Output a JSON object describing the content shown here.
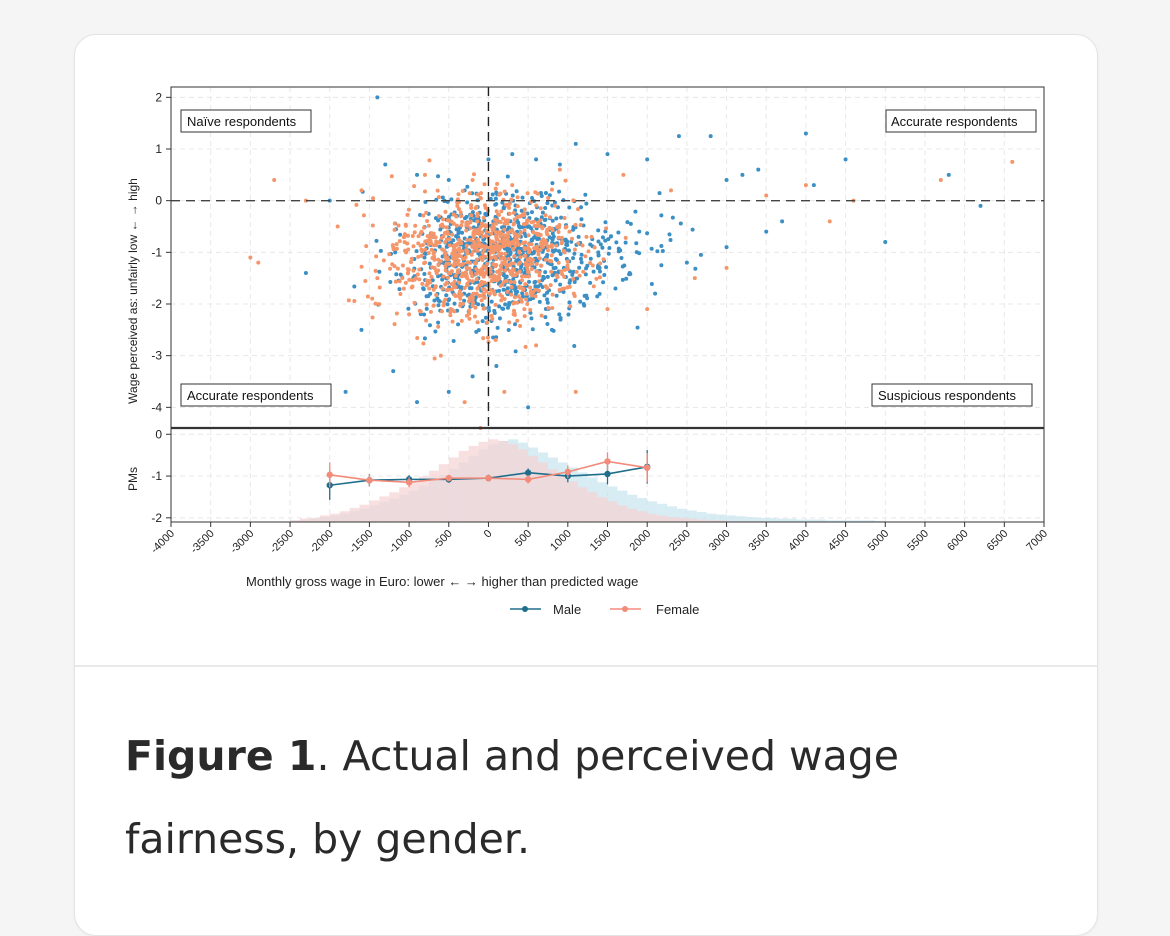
{
  "caption": {
    "label": "Figure 1",
    "text": ". Actual and perceived wage fairness, by gender."
  },
  "colors": {
    "male": "#3b8fc4",
    "female": "#f4956a",
    "male_line": "#1f6e8c",
    "female_line": "#f28b7a",
    "hist_male": "#c7e4ef",
    "hist_female": "#f6d3d3"
  },
  "chart_data": [
    {
      "type": "scatter",
      "ylabel": "Wage perceived as: unfairly low  ←   →  high",
      "xlim": [
        -4000,
        7000
      ],
      "ylim": [
        -4.4,
        2.2
      ],
      "y_ticks": [
        "2",
        "1",
        "0",
        "-1",
        "-2",
        "-3",
        "-4"
      ],
      "reference_lines": {
        "x": 0,
        "y": 0
      },
      "quadrant_labels": {
        "top_left": "Naïve respondents",
        "top_right": "Accurate respondents",
        "bottom_left": "Accurate respondents",
        "bottom_right": "Suspicious respondents"
      },
      "series": [
        {
          "name": "Male",
          "points": [
            [
              -1400,
              2
            ],
            [
              -2000,
              0
            ],
            [
              -1300,
              0.7
            ],
            [
              -900,
              0.5
            ],
            [
              -500,
              0.4
            ],
            [
              -300,
              0.2
            ],
            [
              0,
              0.8
            ],
            [
              300,
              0.9
            ],
            [
              600,
              0.8
            ],
            [
              900,
              0.7
            ],
            [
              1100,
              1.1
            ],
            [
              1500,
              0.9
            ],
            [
              2000,
              0.8
            ],
            [
              2400,
              1.25
            ],
            [
              2800,
              1.25
            ],
            [
              3000,
              0.4
            ],
            [
              3200,
              0.5
            ],
            [
              3400,
              0.6
            ],
            [
              3700,
              -0.4
            ],
            [
              4000,
              1.3
            ],
            [
              4100,
              0.3
            ],
            [
              4500,
              0.8
            ],
            [
              5000,
              -0.8
            ],
            [
              5800,
              0.5
            ],
            [
              6200,
              -0.1
            ],
            [
              -2300,
              -1.4
            ],
            [
              -1600,
              -2.5
            ],
            [
              -1200,
              -3.3
            ],
            [
              -900,
              -3.9
            ],
            [
              -500,
              -3.7
            ],
            [
              -200,
              -3.4
            ],
            [
              100,
              -3.2
            ],
            [
              500,
              -4
            ],
            [
              800,
              -2.5
            ],
            [
              1200,
              -2
            ],
            [
              1600,
              -1.7
            ],
            [
              2100,
              -1.8
            ],
            [
              2500,
              -1.2
            ],
            [
              3000,
              -0.9
            ],
            [
              3500,
              -0.6
            ],
            [
              -1800,
              -3.7
            ],
            [
              -700,
              -0.7
            ],
            [
              200,
              -0.5
            ],
            [
              700,
              -1.5
            ],
            [
              1400,
              -1.3
            ],
            [
              1900,
              -0.6
            ]
          ]
        },
        {
          "name": "Female",
          "points": [
            [
              -2700,
              0.4
            ],
            [
              -2900,
              -1.2
            ],
            [
              -3000,
              -1.1
            ],
            [
              -2300,
              0
            ],
            [
              -1900,
              -0.5
            ],
            [
              -1400,
              -1.5
            ],
            [
              -1000,
              -2.2
            ],
            [
              -600,
              -3
            ],
            [
              -300,
              -3.9
            ],
            [
              -100,
              -4.4
            ],
            [
              200,
              -3.7
            ],
            [
              600,
              -2.8
            ],
            [
              1100,
              -3.7
            ],
            [
              1500,
              -2.1
            ],
            [
              2000,
              -2.1
            ],
            [
              2600,
              -1.5
            ],
            [
              3000,
              -1.3
            ],
            [
              3500,
              0.1
            ],
            [
              4000,
              0.3
            ],
            [
              4300,
              -0.4
            ],
            [
              4600,
              0
            ],
            [
              5700,
              0.4
            ],
            [
              6600,
              0.75
            ],
            [
              -1600,
              0.2
            ],
            [
              -800,
              0.5
            ],
            [
              -200,
              0.4
            ],
            [
              300,
              0.3
            ],
            [
              900,
              0.6
            ],
            [
              1700,
              0.5
            ],
            [
              2300,
              0.2
            ],
            [
              -1200,
              -0.9
            ],
            [
              -500,
              -1.4
            ],
            [
              0,
              -1.6
            ],
            [
              400,
              -1.2
            ],
            [
              800,
              -0.9
            ],
            [
              1300,
              -0.7
            ]
          ]
        }
      ]
    },
    {
      "type": "line",
      "ylabel": "PMs",
      "xlabel": "Monthly gross wage in Euro: lower  ←   →  higher than predicted wage",
      "x_ticks": [
        "-4000",
        "-3500",
        "-3000",
        "-2500",
        "-2000",
        "-1500",
        "-1000",
        "-500",
        "0",
        "500",
        "1000",
        "1500",
        "2000",
        "2500",
        "3000",
        "3500",
        "4000",
        "4500",
        "5000",
        "5500",
        "6000",
        "6500",
        "7000"
      ],
      "y_ticks": [
        "0",
        "-1",
        "-2"
      ],
      "ylim": [
        -2.1,
        0.15
      ],
      "x": [
        -2000,
        -1500,
        -1000,
        -500,
        0,
        500,
        1000,
        1500,
        2000
      ],
      "series": [
        {
          "name": "Male",
          "values": [
            -1.22,
            -1.1,
            -1.08,
            -1.08,
            -1.05,
            -0.92,
            -1.0,
            -0.95,
            -0.78
          ],
          "ci": [
            0.35,
            0.15,
            0.1,
            0.08,
            0.08,
            0.1,
            0.15,
            0.25,
            0.4
          ]
        },
        {
          "name": "Female",
          "values": [
            -0.97,
            -1.1,
            -1.15,
            -1.05,
            -1.05,
            -1.08,
            -0.9,
            -0.65,
            -0.8
          ],
          "ci": [
            0.3,
            0.15,
            0.12,
            0.08,
            0.08,
            0.1,
            0.15,
            0.22,
            0.35
          ]
        }
      ],
      "histogram": {
        "bin_width": 125,
        "bin_start": -2500,
        "male_density": [
          0.02,
          0.03,
          0.04,
          0.06,
          0.08,
          0.1,
          0.13,
          0.16,
          0.2,
          0.24,
          0.28,
          0.33,
          0.38,
          0.44,
          0.5,
          0.57,
          0.64,
          0.72,
          0.8,
          0.88,
          0.94,
          0.98,
          1,
          0.96,
          0.9,
          0.84,
          0.78,
          0.72,
          0.66,
          0.6,
          0.54,
          0.48,
          0.43,
          0.38,
          0.33,
          0.29,
          0.25,
          0.22,
          0.19,
          0.16,
          0.14,
          0.12,
          0.1,
          0.09,
          0.08,
          0.07,
          0.06,
          0.05,
          0.05,
          0.04,
          0.04,
          0.03,
          0.03,
          0.03,
          0.02,
          0.02,
          0.02,
          0.02,
          0.02,
          0.01
        ],
        "female_density": [
          0.02,
          0.04,
          0.05,
          0.08,
          0.1,
          0.13,
          0.17,
          0.21,
          0.26,
          0.31,
          0.36,
          0.42,
          0.48,
          0.55,
          0.62,
          0.7,
          0.78,
          0.86,
          0.92,
          0.97,
          1,
          0.98,
          0.94,
          0.88,
          0.8,
          0.72,
          0.64,
          0.56,
          0.49,
          0.42,
          0.36,
          0.3,
          0.25,
          0.2,
          0.16,
          0.13,
          0.1,
          0.08,
          0.06,
          0.05,
          0.04,
          0.03,
          0.02,
          0.02,
          0.01,
          0.01,
          0.01,
          0.01,
          0.0,
          0.0,
          0.0,
          0.0,
          0.0,
          0.0,
          0.0,
          0.0,
          0.0,
          0.0,
          0.0,
          0.0
        ]
      },
      "legend": [
        {
          "name": "Male"
        },
        {
          "name": "Female"
        }
      ]
    }
  ]
}
